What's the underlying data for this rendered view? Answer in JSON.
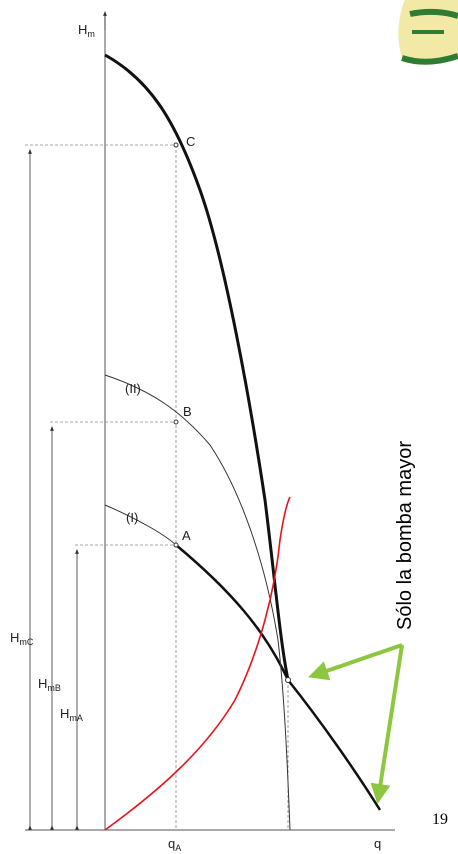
{
  "labels": {
    "y_axis": "H",
    "y_axis_sub": "m",
    "x_axis": "q",
    "q_a": "q",
    "q_a_sub": "A",
    "point_c": "C",
    "point_b": "B",
    "point_a": "A",
    "curve_ii": "(II)",
    "curve_i": "(I)",
    "h_mc": "H",
    "h_mc_sub": "mC",
    "h_mb": "H",
    "h_mb_sub": "mB",
    "h_ma": "H",
    "h_ma_sub": "mA"
  },
  "annotation": {
    "text": "Sólo la bomba mayor"
  },
  "page_number": "19",
  "colors": {
    "system_curve": "#e8141c",
    "arrow": "#8dc63f",
    "logo_green": "#2e7d32",
    "logo_yellow": "#f3e9a6"
  },
  "icons": {
    "corner_logo": "logo-swoosh-icon"
  }
}
